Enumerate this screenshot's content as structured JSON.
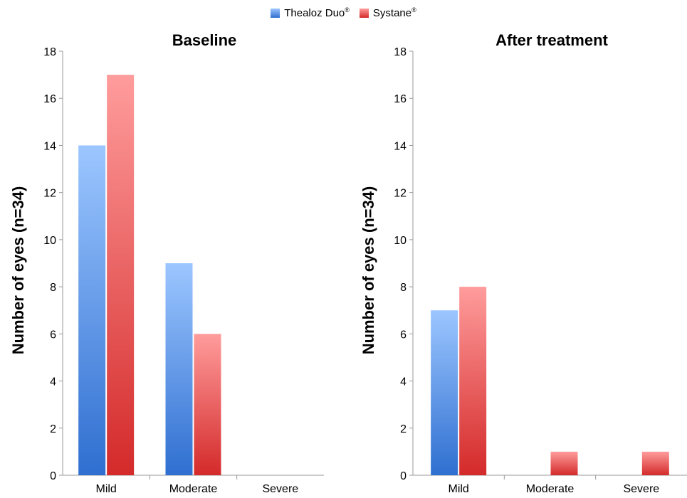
{
  "legend": {
    "items": [
      {
        "name": "Thealoz Duo",
        "mark": "®",
        "color": "#3a78d8"
      },
      {
        "name": "Systane",
        "mark": "®",
        "color": "#e03a3a"
      }
    ]
  },
  "colors": {
    "blue_top": "#9cc6ff",
    "blue_bottom": "#2f6fd0",
    "red_top": "#ff9c9c",
    "red_bottom": "#d42a2a",
    "axis": "#999999"
  },
  "chart_data": [
    {
      "type": "bar",
      "title": "Baseline",
      "ylabel": "Number of eyes (n=34)",
      "xlabel": "",
      "categories": [
        "Mild",
        "Moderate",
        "Severe"
      ],
      "series": [
        {
          "name": "Thealoz Duo®",
          "values": [
            14,
            9,
            0
          ]
        },
        {
          "name": "Systane®",
          "values": [
            17,
            6,
            0
          ]
        }
      ],
      "ylim": [
        0,
        18
      ],
      "yticks": [
        0,
        2,
        4,
        6,
        8,
        10,
        12,
        14,
        16,
        18
      ],
      "grid": false,
      "legend": "top-center"
    },
    {
      "type": "bar",
      "title": "After treatment",
      "ylabel": "Number of eyes (n=34)",
      "xlabel": "",
      "categories": [
        "Mild",
        "Moderate",
        "Severe"
      ],
      "series": [
        {
          "name": "Thealoz Duo®",
          "values": [
            7,
            0,
            0
          ]
        },
        {
          "name": "Systane®",
          "values": [
            8,
            1,
            1
          ]
        }
      ],
      "ylim": [
        0,
        18
      ],
      "yticks": [
        0,
        2,
        4,
        6,
        8,
        10,
        12,
        14,
        16,
        18
      ],
      "grid": false,
      "legend": "top-center"
    }
  ]
}
